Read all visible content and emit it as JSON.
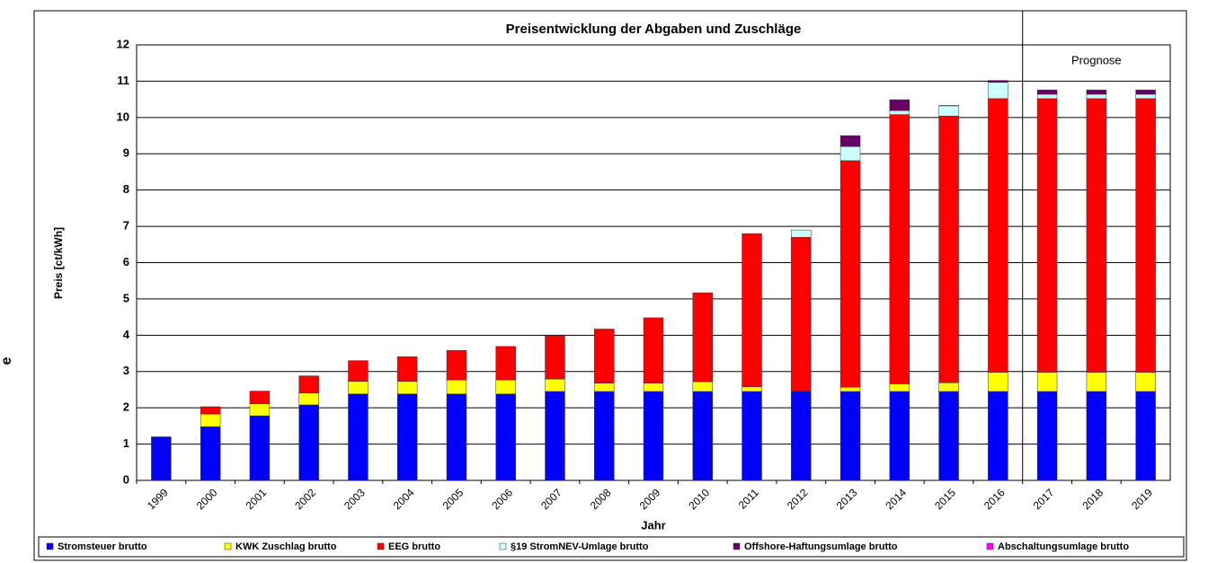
{
  "chart_data": {
    "type": "bar",
    "stacked": true,
    "title": "Preisentwicklung der Abgaben und Zuschläge",
    "ylabel": "Preis [ct/kWh]",
    "xlabel": "Jahr",
    "annotation": "Prognose",
    "side_text": "e",
    "categories": [
      "1999",
      "2000",
      "2001",
      "2002",
      "2003",
      "2004",
      "2005",
      "2006",
      "2007",
      "2008",
      "2009",
      "2010",
      "2011",
      "2012",
      "2013",
      "2014",
      "2015",
      "2016",
      "2017",
      "2018",
      "2019"
    ],
    "series": [
      {
        "name": "Stromsteuer brutto",
        "color": "#0000ff",
        "values": [
          1.2,
          1.48,
          1.78,
          2.08,
          2.38,
          2.38,
          2.38,
          2.38,
          2.45,
          2.45,
          2.45,
          2.45,
          2.45,
          2.45,
          2.45,
          2.45,
          2.45,
          2.45,
          2.45,
          2.45,
          2.45
        ]
      },
      {
        "name": "KWK Zuschlag brutto",
        "color": "#ffff00",
        "values": [
          null,
          0.35,
          0.33,
          0.33,
          0.35,
          0.35,
          0.39,
          0.39,
          0.34,
          0.23,
          0.23,
          0.27,
          0.13,
          0.01,
          0.12,
          0.21,
          0.24,
          0.53,
          0.53,
          0.53,
          0.53
        ]
      },
      {
        "name": "EEG brutto",
        "color": "#ff0000",
        "values": [
          null,
          0.2,
          0.35,
          0.47,
          0.57,
          0.68,
          0.81,
          0.92,
          1.19,
          1.49,
          1.8,
          2.45,
          4.22,
          4.24,
          6.24,
          7.42,
          7.35,
          7.54,
          7.54,
          7.54,
          7.54
        ]
      },
      {
        "name": "§19 StromNEV-Umlage brutto",
        "color": "#ccffff",
        "values": [
          null,
          null,
          null,
          null,
          null,
          null,
          null,
          null,
          null,
          null,
          null,
          null,
          null,
          0.2,
          0.39,
          0.11,
          0.28,
          0.45,
          0.12,
          0.12,
          0.12
        ]
      },
      {
        "name": "Offshore-Haftungsumlage brutto",
        "color": "#660066",
        "values": [
          null,
          null,
          null,
          null,
          null,
          null,
          null,
          null,
          null,
          null,
          null,
          null,
          null,
          null,
          0.3,
          0.29,
          null,
          0.05,
          0.12,
          0.12,
          0.12
        ]
      },
      {
        "name": "Abschaltungsumlage brutto",
        "color": "#ff00ff",
        "values": [
          null,
          null,
          null,
          null,
          null,
          null,
          null,
          null,
          null,
          null,
          null,
          null,
          null,
          null,
          null,
          0.01,
          0.01,
          null,
          null,
          null,
          null
        ]
      }
    ],
    "ylim": [
      0,
      12
    ],
    "yticks": [
      0,
      1,
      2,
      3,
      4,
      5,
      6,
      7,
      8,
      9,
      10,
      11,
      12
    ],
    "grid": true,
    "prognose_from": "2017"
  }
}
